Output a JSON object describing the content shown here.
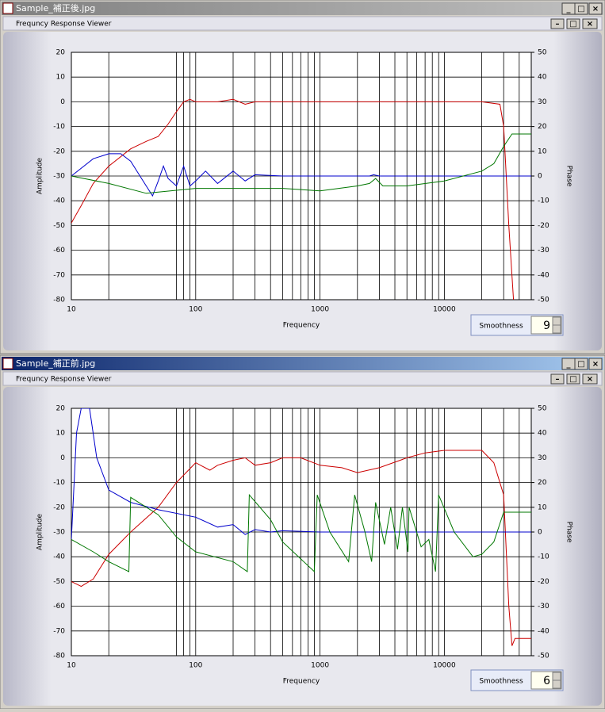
{
  "windows": [
    {
      "title": "Sample_補正後.jpg",
      "inner_title": "Frequncy Response Viewer",
      "smoothness_label": "Smoothness",
      "smoothness_value": "9"
    },
    {
      "title": "Sample_補正前.jpg",
      "inner_title": "Frequncy Response Viewer",
      "smoothness_label": "Smoothness",
      "smoothness_value": "6"
    }
  ],
  "chart_data": [
    {
      "type": "line",
      "xlabel": "Frequency",
      "ylabel": "Amplitude",
      "y2label": "Phase",
      "xscale": "log",
      "grid": true,
      "xlim": [
        10,
        50000
      ],
      "xticks": [
        10,
        100,
        1000,
        10000
      ],
      "xgrid": [
        20,
        70,
        80,
        90,
        200,
        300,
        400,
        500,
        600,
        700,
        800,
        900,
        2000,
        3000,
        4000,
        5000,
        6000,
        7000,
        8000,
        9000,
        20000,
        30000,
        40000
      ],
      "ylim": [
        -80,
        20
      ],
      "yticks": [
        20,
        10,
        0,
        -10,
        -20,
        -30,
        -40,
        -50,
        -60,
        -70,
        -80
      ],
      "y2lim": [
        -50,
        50
      ],
      "y2ticks": [
        50,
        40,
        30,
        20,
        10,
        0,
        -10,
        -20,
        -30,
        -40,
        -50
      ],
      "series": [
        {
          "color": "#cc0000",
          "x": [
            10,
            12,
            15,
            20,
            30,
            40,
            50,
            60,
            70,
            80,
            90,
            100,
            150,
            200,
            250,
            300,
            500,
            1000,
            5000,
            20000,
            28000,
            30000,
            33000,
            36000
          ],
          "values": [
            -49,
            -42,
            -33,
            -26,
            -19,
            -16,
            -14,
            -9,
            -4,
            0,
            1,
            0,
            0,
            1,
            -1,
            0,
            0,
            0,
            0,
            0,
            -1,
            -10,
            -50,
            -80
          ]
        },
        {
          "color": "#0000cc",
          "axis": "y2",
          "x": [
            10,
            15,
            20,
            25,
            30,
            40,
            45,
            50,
            55,
            60,
            70,
            80,
            90,
            100,
            120,
            150,
            200,
            250,
            300,
            500,
            2500,
            2700,
            3000,
            50000
          ],
          "values": [
            0,
            7,
            9,
            9,
            6,
            -4,
            -8,
            -2,
            4,
            -1,
            -4,
            4,
            -4,
            -2,
            2,
            -3,
            2,
            -2,
            0.5,
            0,
            0,
            0.5,
            0,
            0
          ]
        },
        {
          "color": "#007700",
          "axis": "y2",
          "x": [
            10,
            20,
            40,
            100,
            200,
            500,
            1000,
            2000,
            2500,
            2800,
            3200,
            5000,
            10000,
            20000,
            25000,
            30000,
            35000,
            50000
          ],
          "values": [
            0,
            -3,
            -7,
            -5,
            -5,
            -5,
            -6,
            -4,
            -3,
            -1,
            -4,
            -4,
            -2,
            2,
            5,
            12,
            17,
            17
          ]
        }
      ]
    },
    {
      "type": "line",
      "xlabel": "Frequency",
      "ylabel": "Amplitude",
      "y2label": "Phase",
      "xscale": "log",
      "grid": true,
      "xlim": [
        10,
        50000
      ],
      "xticks": [
        10,
        100,
        1000,
        10000
      ],
      "xgrid": [
        20,
        70,
        80,
        90,
        200,
        300,
        400,
        500,
        600,
        700,
        800,
        900,
        2000,
        3000,
        4000,
        5000,
        6000,
        7000,
        8000,
        9000,
        20000,
        30000,
        40000
      ],
      "ylim": [
        -80,
        20
      ],
      "yticks": [
        20,
        10,
        0,
        -10,
        -20,
        -30,
        -40,
        -50,
        -60,
        -70,
        -80
      ],
      "y2lim": [
        -50,
        50
      ],
      "y2ticks": [
        50,
        40,
        30,
        20,
        10,
        0,
        -10,
        -20,
        -30,
        -40,
        -50
      ],
      "series": [
        {
          "color": "#cc0000",
          "x": [
            10,
            12,
            15,
            20,
            30,
            50,
            70,
            100,
            130,
            150,
            200,
            250,
            300,
            400,
            500,
            700,
            1000,
            1500,
            2000,
            3000,
            5000,
            7000,
            10000,
            20000,
            25000,
            30000,
            33000,
            35000,
            37000,
            50000
          ],
          "values": [
            -50,
            -52,
            -49,
            -39,
            -30,
            -20,
            -10,
            -2,
            -5,
            -3,
            -1,
            0,
            -3,
            -2,
            0,
            0,
            -3,
            -4,
            -6,
            -4,
            0,
            2,
            3,
            3,
            -2,
            -15,
            -60,
            -76,
            -73,
            -73
          ]
        },
        {
          "color": "#0000cc",
          "axis": "y2",
          "x": [
            10,
            11,
            12,
            14,
            16,
            20,
            30,
            50,
            100,
            150,
            200,
            250,
            300,
            400,
            500,
            1000,
            50000
          ],
          "values": [
            -3,
            40,
            50,
            50,
            30,
            17,
            12,
            9,
            6,
            2,
            3,
            -1,
            1,
            0,
            0.5,
            0,
            0
          ]
        },
        {
          "color": "#007700",
          "axis": "y2",
          "x": [
            10,
            15,
            20,
            29,
            30,
            50,
            70,
            100,
            200,
            260,
            270,
            400,
            500,
            900,
            950,
            1200,
            1700,
            1900,
            2300,
            2600,
            2800,
            3300,
            3700,
            4200,
            4600,
            5100,
            5200,
            6500,
            7500,
            8500,
            9000,
            12000,
            17000,
            20000,
            25000,
            30000,
            50000
          ],
          "values": [
            -3,
            -8,
            -12,
            -16,
            14,
            7,
            -2,
            -8,
            -12,
            -16,
            15,
            5,
            -4,
            -16,
            15,
            0,
            -12,
            15,
            0,
            -12,
            12,
            -5,
            10,
            -7,
            10,
            -8,
            10,
            -6,
            -3,
            -16,
            15,
            0,
            -10,
            -9,
            -4,
            8,
            8
          ]
        }
      ]
    }
  ]
}
